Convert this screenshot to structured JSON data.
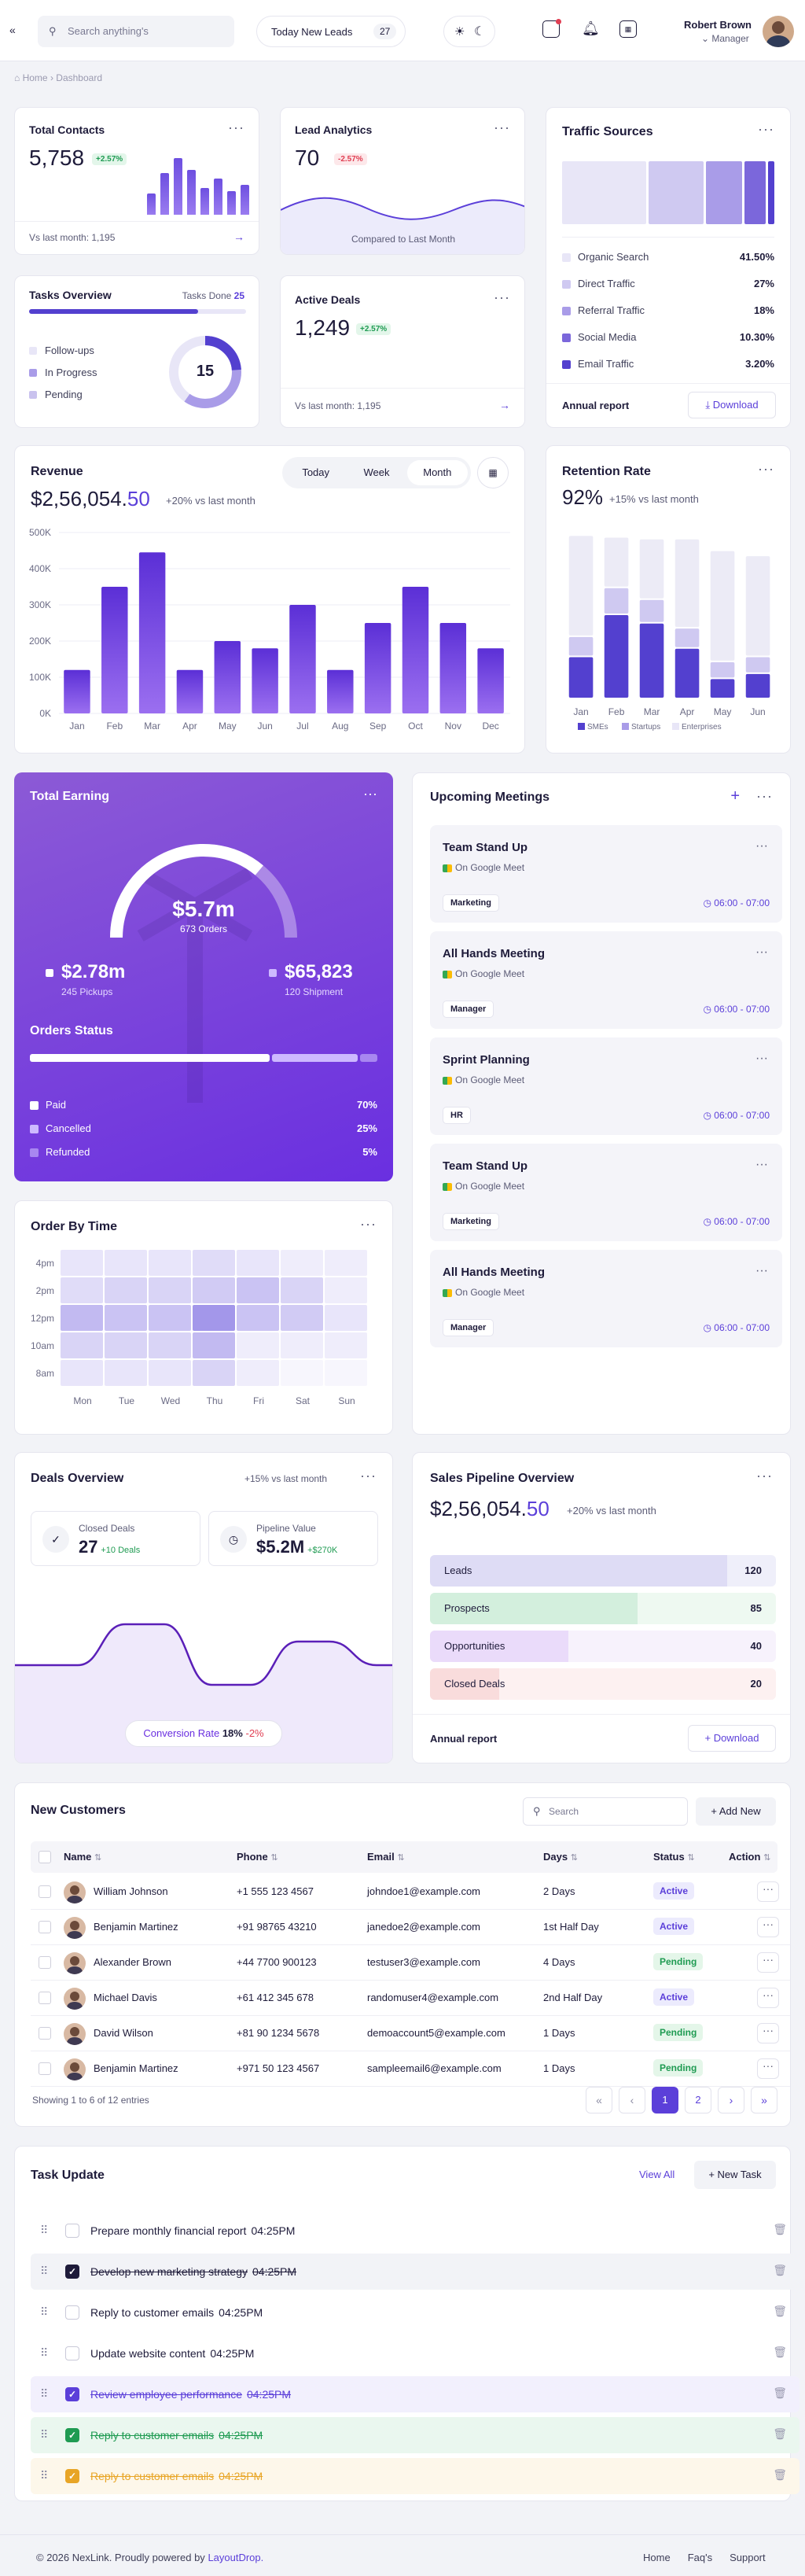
{
  "topbar": {
    "search_placeholder": "Search anything's",
    "leads_label": "Today New Leads",
    "leads_count": "27",
    "user_name": "Robert Brown",
    "user_role": "Manager"
  },
  "breadcrumb": {
    "home": "Home",
    "current": "Dashboard"
  },
  "total_contacts": {
    "title": "Total Contacts",
    "value": "5,758",
    "change": "+2.57%",
    "footer": "Vs last month: 1,195",
    "bars": [
      0.35,
      0.7,
      0.95,
      0.75,
      0.45,
      0.6,
      0.4,
      0.5
    ]
  },
  "lead_analytics": {
    "title": "Lead Analytics",
    "value": "70",
    "change": "-2.57%",
    "footer": "Compared to Last Month"
  },
  "traffic": {
    "title": "Traffic Sources",
    "items": [
      {
        "label": "Organic Search",
        "value": "41.50%",
        "color": "#e8e6f7"
      },
      {
        "label": "Direct Traffic",
        "value": "27%",
        "color": "#cfc9f1"
      },
      {
        "label": "Referral Traffic",
        "value": "18%",
        "color": "#a99ce8"
      },
      {
        "label": "Social Media",
        "value": "10.30%",
        "color": "#7b67db"
      },
      {
        "label": "Email Traffic",
        "value": "3.20%",
        "color": "#5340cf"
      }
    ],
    "report_label": "Annual report",
    "download_label": "Download"
  },
  "tasks_overview": {
    "title": "Tasks Overview",
    "done_label": "Tasks Done",
    "done_count": "25",
    "progress": 0.78,
    "legend": [
      "Follow-ups",
      "In Progress",
      "Pending"
    ],
    "center_value": "15"
  },
  "active_deals": {
    "title": "Active Deals",
    "value": "1,249",
    "change": "+2.57%",
    "footer": "Vs last month: 1,195"
  },
  "revenue": {
    "title": "Revenue",
    "value_main": "$2,56,054.",
    "value_cents": "50",
    "change": "+20% vs last month",
    "tabs": [
      "Today",
      "Week",
      "Month"
    ],
    "active_tab": "Month"
  },
  "retention": {
    "title": "Retention Rate",
    "value": "92%",
    "change": "+15% vs last month",
    "legend": [
      "SMEs",
      "Startups",
      "Enterprises"
    ]
  },
  "total_earning": {
    "title": "Total Earning",
    "gauge_value": "$5.7m",
    "gauge_sub": "673 Orders",
    "gauge_fraction": 0.72,
    "pickups_value": "$2.78m",
    "pickups_label": "245 Pickups",
    "shipment_value": "$65,823",
    "shipment_label": "120 Shipment",
    "orders_status_title": "Orders Status",
    "status": [
      {
        "label": "Paid",
        "value": "70%"
      },
      {
        "label": "Cancelled",
        "value": "25%"
      },
      {
        "label": "Refunded",
        "value": "5%"
      }
    ]
  },
  "meetings": {
    "title": "Upcoming Meetings",
    "items": [
      {
        "title": "Team Stand Up",
        "platform": "On Google Meet",
        "tag": "Marketing",
        "time": "06:00 - 07:00"
      },
      {
        "title": "All Hands Meeting",
        "platform": "On Google Meet",
        "tag": "Manager",
        "time": "06:00 - 07:00"
      },
      {
        "title": "Sprint Planning",
        "platform": "On Google Meet",
        "tag": "HR",
        "time": "06:00 - 07:00"
      },
      {
        "title": "Team Stand Up",
        "platform": "On Google Meet",
        "tag": "Marketing",
        "time": "06:00 - 07:00"
      },
      {
        "title": "All Hands Meeting",
        "platform": "On Google Meet",
        "tag": "Manager",
        "time": "06:00 - 07:00"
      }
    ]
  },
  "order_by_time": {
    "title": "Order By Time",
    "rows": [
      "4pm",
      "2pm",
      "12pm",
      "10am",
      "8am"
    ],
    "cols": [
      "Mon",
      "Tue",
      "Wed",
      "Thu",
      "Fri",
      "Sat",
      "Sun"
    ]
  },
  "deals_overview": {
    "title": "Deals Overview",
    "change": "+15% vs last month",
    "closed_label": "Closed Deals",
    "closed_value": "27",
    "closed_change": "+10 Deals",
    "pipeline_label": "Pipeline Value",
    "pipeline_value": "$5.2M",
    "pipeline_change": "+$270K",
    "conversion_label": "Conversion Rate",
    "conversion_value": "18%",
    "conversion_change": "-2%"
  },
  "sales_pipeline": {
    "title": "Sales Pipeline Overview",
    "value_main": "$2,56,054.",
    "value_cents": "50",
    "change": "+20% vs last month",
    "stages": [
      {
        "label": "Leads",
        "value": "120"
      },
      {
        "label": "Prospects",
        "value": "85"
      },
      {
        "label": "Opportunities",
        "value": "40"
      },
      {
        "label": "Closed Deals",
        "value": "20"
      }
    ],
    "report_label": "Annual report",
    "download_label": "Download"
  },
  "customers": {
    "title": "New Customers",
    "search_placeholder": "Search",
    "add_label": "Add New",
    "headers": [
      "Name",
      "Phone",
      "Email",
      "Days",
      "Status",
      "Action"
    ],
    "rows": [
      {
        "name": "William Johnson",
        "phone": "+1 555 123 4567",
        "email": "johndoe1@example.com",
        "days": "2 Days",
        "status": "Active"
      },
      {
        "name": "Benjamin Martinez",
        "phone": "+91 98765 43210",
        "email": "janedoe2@example.com",
        "days": "1st Half Day",
        "status": "Active"
      },
      {
        "name": "Alexander Brown",
        "phone": "+44 7700 900123",
        "email": "testuser3@example.com",
        "days": "4 Days",
        "status": "Pending"
      },
      {
        "name": "Michael Davis",
        "phone": "+61 412 345 678",
        "email": "randomuser4@example.com",
        "days": "2nd Half Day",
        "status": "Active"
      },
      {
        "name": "David Wilson",
        "phone": "+81 90 1234 5678",
        "email": "demoaccount5@example.com",
        "days": "1 Days",
        "status": "Pending"
      },
      {
        "name": "Benjamin Martinez",
        "phone": "+971 50 123 4567",
        "email": "sampleemail6@example.com",
        "days": "1 Days",
        "status": "Pending"
      }
    ],
    "footer": "Showing 1 to 6 of 12 entries",
    "pages": [
      "1",
      "2"
    ]
  },
  "task_update": {
    "title": "Task Update",
    "view_all": "View All",
    "new_task": "New Task",
    "items": [
      {
        "text": "Prepare monthly financial report",
        "time": "04:25PM"
      },
      {
        "text": "Develop new marketing strategy",
        "time": "04:25PM"
      },
      {
        "text": "Reply to customer emails",
        "time": "04:25PM"
      },
      {
        "text": "Update website content",
        "time": "04:25PM"
      },
      {
        "text": "Review employee performance",
        "time": "04:25PM"
      },
      {
        "text": "Reply to customer emails",
        "time": "04:25PM"
      },
      {
        "text": "Reply to customer emails",
        "time": "04:25PM"
      }
    ]
  },
  "footer": {
    "copyright": "© 2026 NexLink. Proudly powered by",
    "brand": "LayoutDrop.",
    "links": [
      "Home",
      "Faq's",
      "Support"
    ]
  },
  "chart_data": [
    {
      "type": "bar",
      "title": "Revenue",
      "categories": [
        "Jan",
        "Feb",
        "Mar",
        "Apr",
        "May",
        "Jun",
        "Jul",
        "Aug",
        "Sep",
        "Oct",
        "Nov",
        "Dec"
      ],
      "values": [
        120000,
        350000,
        445000,
        120000,
        200000,
        180000,
        300000,
        120000,
        250000,
        350000,
        250000,
        180000
      ],
      "ylim": [
        0,
        500000
      ],
      "yticks": [
        "0K",
        "100K",
        "200K",
        "300K",
        "400K",
        "500K"
      ]
    },
    {
      "type": "bar",
      "title": "Retention Rate",
      "categories": [
        "Jan",
        "Feb",
        "Mar",
        "Apr",
        "May",
        "Jun"
      ],
      "series": [
        {
          "name": "SMEs",
          "values": [
            25,
            50,
            45,
            30,
            12,
            15
          ]
        },
        {
          "name": "Startups",
          "values": [
            12,
            16,
            14,
            12,
            10,
            10
          ]
        },
        {
          "name": "Enterprises",
          "values": [
            60,
            30,
            36,
            53,
            66,
            60
          ]
        }
      ],
      "ylim": [
        0,
        100
      ]
    }
  ]
}
